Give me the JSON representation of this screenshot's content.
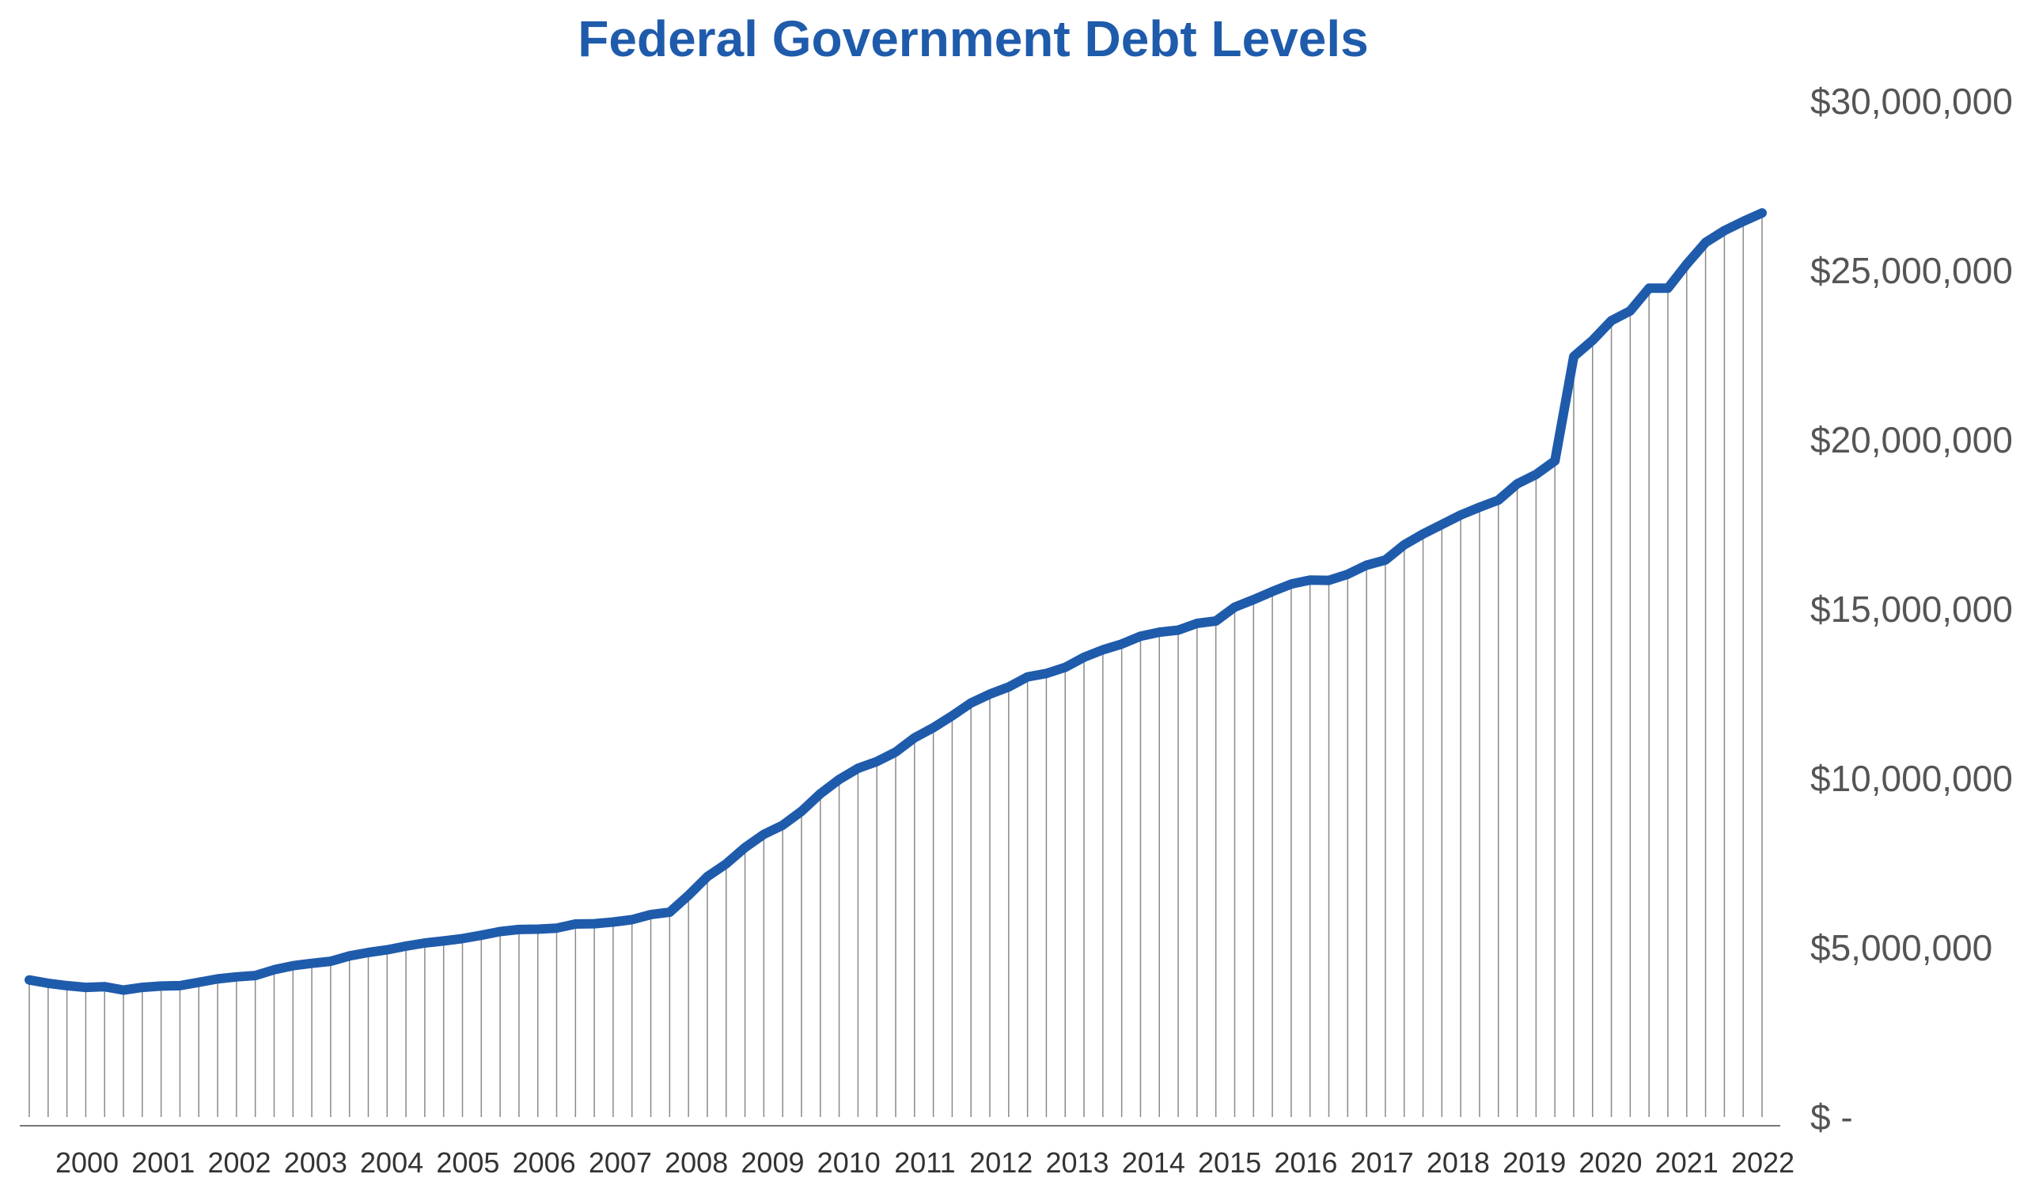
{
  "chart_data": {
    "type": "line",
    "title": "Federal Government Debt Levels",
    "xlabel": "",
    "ylabel": "",
    "ylim": [
      0,
      30000000
    ],
    "y_ticks": [
      0,
      5000000,
      10000000,
      15000000,
      20000000,
      25000000,
      30000000
    ],
    "y_tick_labels": [
      "$ -",
      "$5,000,000",
      "$10,000,000",
      "$15,000,000",
      "$20,000,000",
      "$25,000,000",
      "$30,000,000"
    ],
    "x_tick_labels": [
      "2000",
      "2001",
      "2002",
      "2003",
      "2004",
      "2005",
      "2006",
      "2007",
      "2008",
      "2009",
      "2010",
      "2011",
      "2012",
      "2013",
      "2014",
      "2015",
      "2016",
      "2017",
      "2018",
      "2019",
      "2020",
      "2021",
      "2022"
    ],
    "grid": "vertical drop lines at each quarter",
    "legend": "none",
    "series": [
      {
        "color": "#1f5bab",
        "values": [
          4050000,
          3950000,
          3880000,
          3830000,
          3850000,
          3750000,
          3830000,
          3870000,
          3880000,
          3980000,
          4080000,
          4140000,
          4180000,
          4350000,
          4470000,
          4540000,
          4600000,
          4760000,
          4860000,
          4940000,
          5050000,
          5140000,
          5200000,
          5270000,
          5370000,
          5480000,
          5540000,
          5550000,
          5580000,
          5700000,
          5710000,
          5760000,
          5830000,
          5980000,
          6050000,
          6550000,
          7100000,
          7480000,
          7960000,
          8350000,
          8620000,
          9030000,
          9550000,
          9970000,
          10300000,
          10500000,
          10780000,
          11200000,
          11500000,
          11850000,
          12230000,
          12490000,
          12700000,
          13000000,
          13100000,
          13280000,
          13580000,
          13800000,
          13970000,
          14200000,
          14320000,
          14380000,
          14580000,
          14650000,
          15060000,
          15280000,
          15520000,
          15740000,
          15860000,
          15850000,
          16030000,
          16300000,
          16450000,
          16900000,
          17220000,
          17500000,
          17780000,
          18010000,
          18220000,
          18700000,
          18980000,
          19380000,
          22460000,
          22940000,
          23520000,
          23810000,
          24480000,
          24480000,
          25190000,
          25830000,
          26180000,
          26450000,
          26700000
        ]
      }
    ]
  }
}
